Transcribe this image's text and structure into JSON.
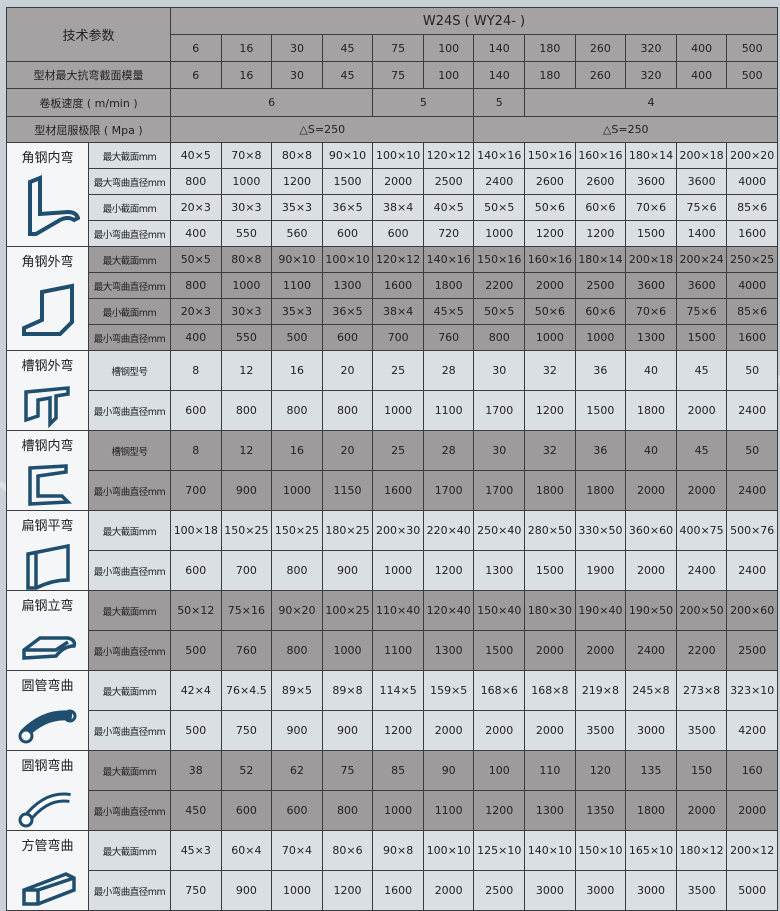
{
  "header": {
    "title": "技术参数",
    "model": "W24S ( WY24- )",
    "models": [
      "6",
      "16",
      "30",
      "45",
      "75",
      "100",
      "140",
      "180",
      "260",
      "320",
      "400",
      "500"
    ],
    "modulus_label": "型材最大抗弯截面模量",
    "modulus_values": [
      "6",
      "16",
      "30",
      "45",
      "75",
      "100",
      "140",
      "180",
      "260",
      "320",
      "400",
      "500"
    ],
    "speed_label": "卷板速度 ( m/min )",
    "speed_values": [
      "6",
      "5",
      "5",
      "4"
    ],
    "yield_label": "型材屈服极限 ( Mpa )",
    "yield_values": [
      "△S=250",
      "△S=250"
    ]
  },
  "colors": {
    "header": "#a4a2a2",
    "light": "#d9dfe3",
    "dark": "#9d9b9b",
    "icon": "#1f4e6e"
  },
  "sections": [
    {
      "label": "角钢内弯",
      "icon": "angle-inner-icon",
      "shade": "light",
      "rows": [
        {
          "label": "最大截面mm",
          "values": [
            "40×5",
            "70×8",
            "80×8",
            "90×10",
            "100×10",
            "120×12",
            "140×16",
            "150×16",
            "160×16",
            "180×14",
            "200×18",
            "200×20"
          ]
        },
        {
          "label": "最大弯曲直径mm",
          "values": [
            "800",
            "1000",
            "1200",
            "1500",
            "2000",
            "2500",
            "2400",
            "2600",
            "2600",
            "3600",
            "3600",
            "4000"
          ]
        },
        {
          "label": "最小截面mm",
          "values": [
            "20×3",
            "30×3",
            "35×3",
            "36×5",
            "38×4",
            "40×5",
            "50×5",
            "50×6",
            "60×6",
            "70×6",
            "75×6",
            "85×6"
          ]
        },
        {
          "label": "最小弯曲直径mm",
          "values": [
            "400",
            "550",
            "560",
            "600",
            "600",
            "720",
            "1000",
            "1200",
            "1200",
            "1500",
            "1400",
            "1600"
          ]
        }
      ]
    },
    {
      "label": "角钢外弯",
      "icon": "angle-outer-icon",
      "shade": "dark",
      "rows": [
        {
          "label": "最大截面mm",
          "values": [
            "50×5",
            "80×8",
            "90×10",
            "100×10",
            "120×12",
            "140×16",
            "150×16",
            "160×16",
            "180×14",
            "200×18",
            "200×24",
            "250×25"
          ]
        },
        {
          "label": "最大弯曲直径mm",
          "values": [
            "800",
            "1000",
            "1100",
            "1300",
            "1600",
            "1800",
            "2200",
            "2000",
            "2500",
            "3600",
            "3600",
            "4000"
          ]
        },
        {
          "label": "最小截面mm",
          "values": [
            "20×3",
            "30×3",
            "35×3",
            "36×5",
            "38×4",
            "45×5",
            "50×5",
            "50×6",
            "60×6",
            "70×6",
            "75×6",
            "85×6"
          ]
        },
        {
          "label": "最小弯曲直径mm",
          "values": [
            "400",
            "550",
            "500",
            "600",
            "700",
            "760",
            "800",
            "1000",
            "1000",
            "1300",
            "1500",
            "1600"
          ]
        }
      ]
    },
    {
      "label": "槽钢外弯",
      "icon": "channel-outer-icon",
      "shade": "light",
      "rows": [
        {
          "label": "槽钢型号",
          "values": [
            "8",
            "12",
            "16",
            "20",
            "25",
            "28",
            "30",
            "32",
            "36",
            "40",
            "45",
            "50"
          ]
        },
        {
          "label": "最小弯曲直径mm",
          "values": [
            "600",
            "800",
            "800",
            "800",
            "1000",
            "1100",
            "1700",
            "1200",
            "1500",
            "1800",
            "2000",
            "2400"
          ]
        }
      ]
    },
    {
      "label": "槽钢内弯",
      "icon": "channel-inner-icon",
      "shade": "dark",
      "rows": [
        {
          "label": "槽钢型号",
          "values": [
            "8",
            "12",
            "16",
            "20",
            "25",
            "28",
            "30",
            "32",
            "36",
            "40",
            "45",
            "50"
          ]
        },
        {
          "label": "最小弯曲直径mm",
          "values": [
            "700",
            "900",
            "1000",
            "1150",
            "1600",
            "1700",
            "1700",
            "1800",
            "1800",
            "2000",
            "2000",
            "2400"
          ]
        }
      ]
    },
    {
      "label": "扁钢平弯",
      "icon": "flat-bar-flat-icon",
      "shade": "light",
      "rows": [
        {
          "label": "最大截面mm",
          "values": [
            "100×18",
            "150×25",
            "150×25",
            "180×25",
            "200×30",
            "220×40",
            "250×40",
            "280×50",
            "330×50",
            "360×60",
            "400×75",
            "500×76"
          ]
        },
        {
          "label": "最小弯曲直径mm",
          "values": [
            "600",
            "700",
            "800",
            "900",
            "1000",
            "1200",
            "1300",
            "1500",
            "1900",
            "2000",
            "2400",
            "2400"
          ]
        }
      ]
    },
    {
      "label": "扁钢立弯",
      "icon": "flat-bar-edge-icon",
      "shade": "dark",
      "rows": [
        {
          "label": "最大截面mm",
          "values": [
            "50×12",
            "75×16",
            "90×20",
            "100×25",
            "110×40",
            "120×40",
            "150×40",
            "180×30",
            "190×40",
            "190×50",
            "200×50",
            "200×60"
          ]
        },
        {
          "label": "最小弯曲直径mm",
          "values": [
            "500",
            "760",
            "800",
            "1000",
            "1100",
            "1300",
            "1500",
            "2000",
            "2000",
            "2400",
            "2200",
            "2500"
          ]
        }
      ]
    },
    {
      "label": "圆管弯曲",
      "icon": "round-tube-icon",
      "shade": "light",
      "rows": [
        {
          "label": "最大截面mm",
          "values": [
            "42×4",
            "76×4.5",
            "89×5",
            "89×8",
            "114×5",
            "159×5",
            "168×6",
            "168×8",
            "219×8",
            "245×8",
            "273×8",
            "323×10"
          ]
        },
        {
          "label": "最小弯曲直径mm",
          "values": [
            "500",
            "750",
            "900",
            "900",
            "1200",
            "2000",
            "2000",
            "2000",
            "3500",
            "3000",
            "3500",
            "4200"
          ]
        }
      ]
    },
    {
      "label": "圆钢弯曲",
      "icon": "round-bar-icon",
      "shade": "dark",
      "rows": [
        {
          "label": "最大截面mm",
          "values": [
            "38",
            "52",
            "62",
            "75",
            "85",
            "90",
            "100",
            "110",
            "120",
            "135",
            "150",
            "160"
          ]
        },
        {
          "label": "最小弯曲直径mm",
          "values": [
            "450",
            "600",
            "600",
            "800",
            "1000",
            "1100",
            "1200",
            "1300",
            "1350",
            "1800",
            "2000",
            "2000"
          ]
        }
      ]
    },
    {
      "label": "方管弯曲",
      "icon": "square-tube-icon",
      "shade": "light",
      "rows": [
        {
          "label": "最大截面mm",
          "values": [
            "45×3",
            "60×4",
            "70×4",
            "80×6",
            "90×8",
            "100×10",
            "125×10",
            "140×10",
            "150×10",
            "165×10",
            "180×12",
            "200×12"
          ]
        },
        {
          "label": "最小弯曲直径mm",
          "values": [
            "750",
            "900",
            "1000",
            "1200",
            "1600",
            "2000",
            "2500",
            "3000",
            "3000",
            "3000",
            "3500",
            "5000"
          ]
        }
      ]
    }
  ]
}
